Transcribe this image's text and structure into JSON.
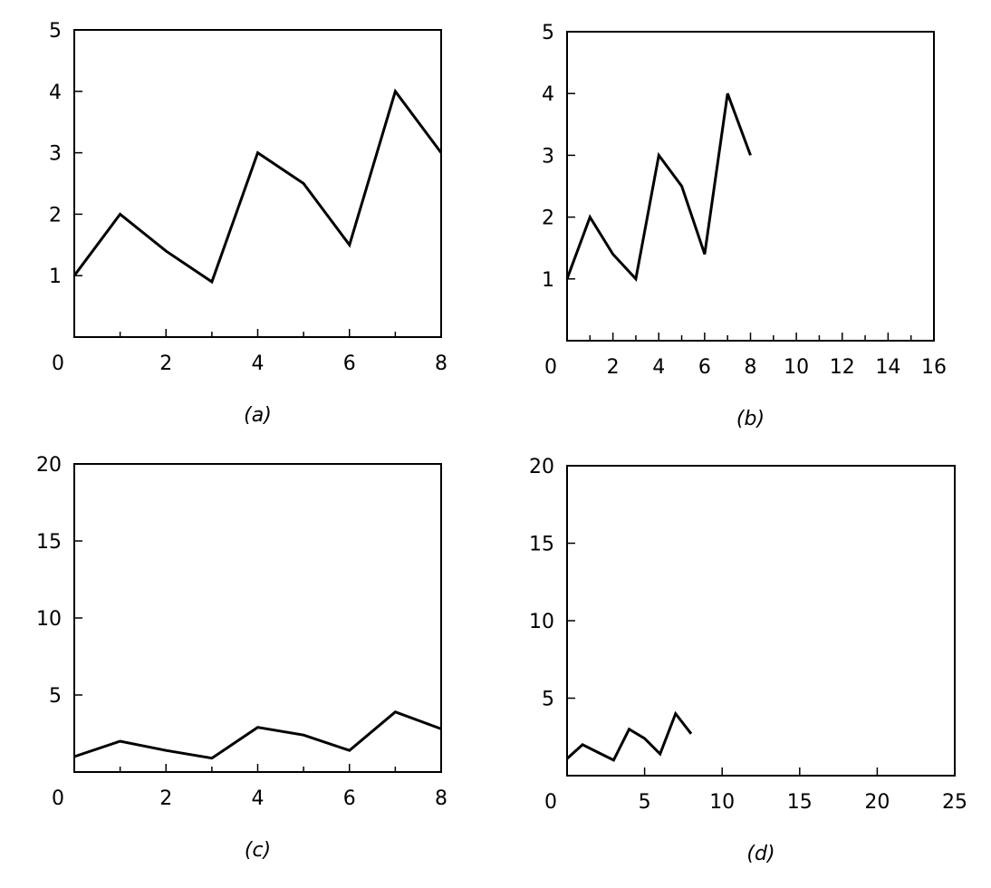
{
  "chart_data": [
    {
      "type": "line",
      "caption": "(a)",
      "x": [
        0,
        1,
        2,
        3,
        4,
        5,
        6,
        7,
        8
      ],
      "series": [
        {
          "values": [
            1,
            2,
            1.4,
            0.9,
            3,
            2.5,
            1.5,
            4,
            3
          ]
        }
      ],
      "xlim": [
        0,
        8
      ],
      "ylim": [
        0,
        5
      ],
      "xticks": [
        0,
        2,
        4,
        6,
        8
      ],
      "xminor": [
        1,
        3,
        5,
        7
      ],
      "yticks": [
        1,
        2,
        3,
        4,
        5
      ],
      "grid": false
    },
    {
      "type": "line",
      "caption": "(b)",
      "x": [
        0,
        1,
        2,
        3,
        4,
        5,
        6,
        7,
        8
      ],
      "series": [
        {
          "values": [
            1,
            2,
            1.4,
            1,
            3,
            2.5,
            1.4,
            4,
            3
          ]
        }
      ],
      "xlim": [
        0,
        16
      ],
      "ylim": [
        0,
        5
      ],
      "xticks": [
        0,
        2,
        4,
        6,
        8,
        10,
        12,
        14,
        16
      ],
      "xminor": [
        1,
        3,
        5,
        7,
        9,
        11,
        13,
        15
      ],
      "yticks": [
        1,
        2,
        3,
        4,
        5
      ],
      "grid": false
    },
    {
      "type": "line",
      "caption": "(c)",
      "x": [
        0,
        1,
        2,
        3,
        4,
        5,
        6,
        7,
        8
      ],
      "series": [
        {
          "values": [
            1,
            2,
            1.4,
            0.9,
            2.9,
            2.4,
            1.4,
            3.9,
            2.8
          ]
        }
      ],
      "xlim": [
        0,
        8
      ],
      "ylim": [
        0,
        20
      ],
      "xticks": [
        0,
        2,
        4,
        6,
        8
      ],
      "xminor": [
        1,
        3,
        5,
        7
      ],
      "yticks": [
        5,
        10,
        15,
        20
      ],
      "grid": false
    },
    {
      "type": "line",
      "caption": "(d)",
      "x": [
        0,
        1,
        2,
        3,
        4,
        5,
        6,
        7,
        8
      ],
      "series": [
        {
          "values": [
            1.1,
            2,
            1.5,
            1,
            3,
            2.4,
            1.4,
            4,
            2.7
          ]
        }
      ],
      "xlim": [
        0,
        25
      ],
      "ylim": [
        0,
        20
      ],
      "xticks": [
        0,
        5,
        10,
        15,
        20,
        25
      ],
      "xminor": [],
      "yticks": [
        5,
        10,
        15,
        20
      ],
      "grid": false
    }
  ]
}
